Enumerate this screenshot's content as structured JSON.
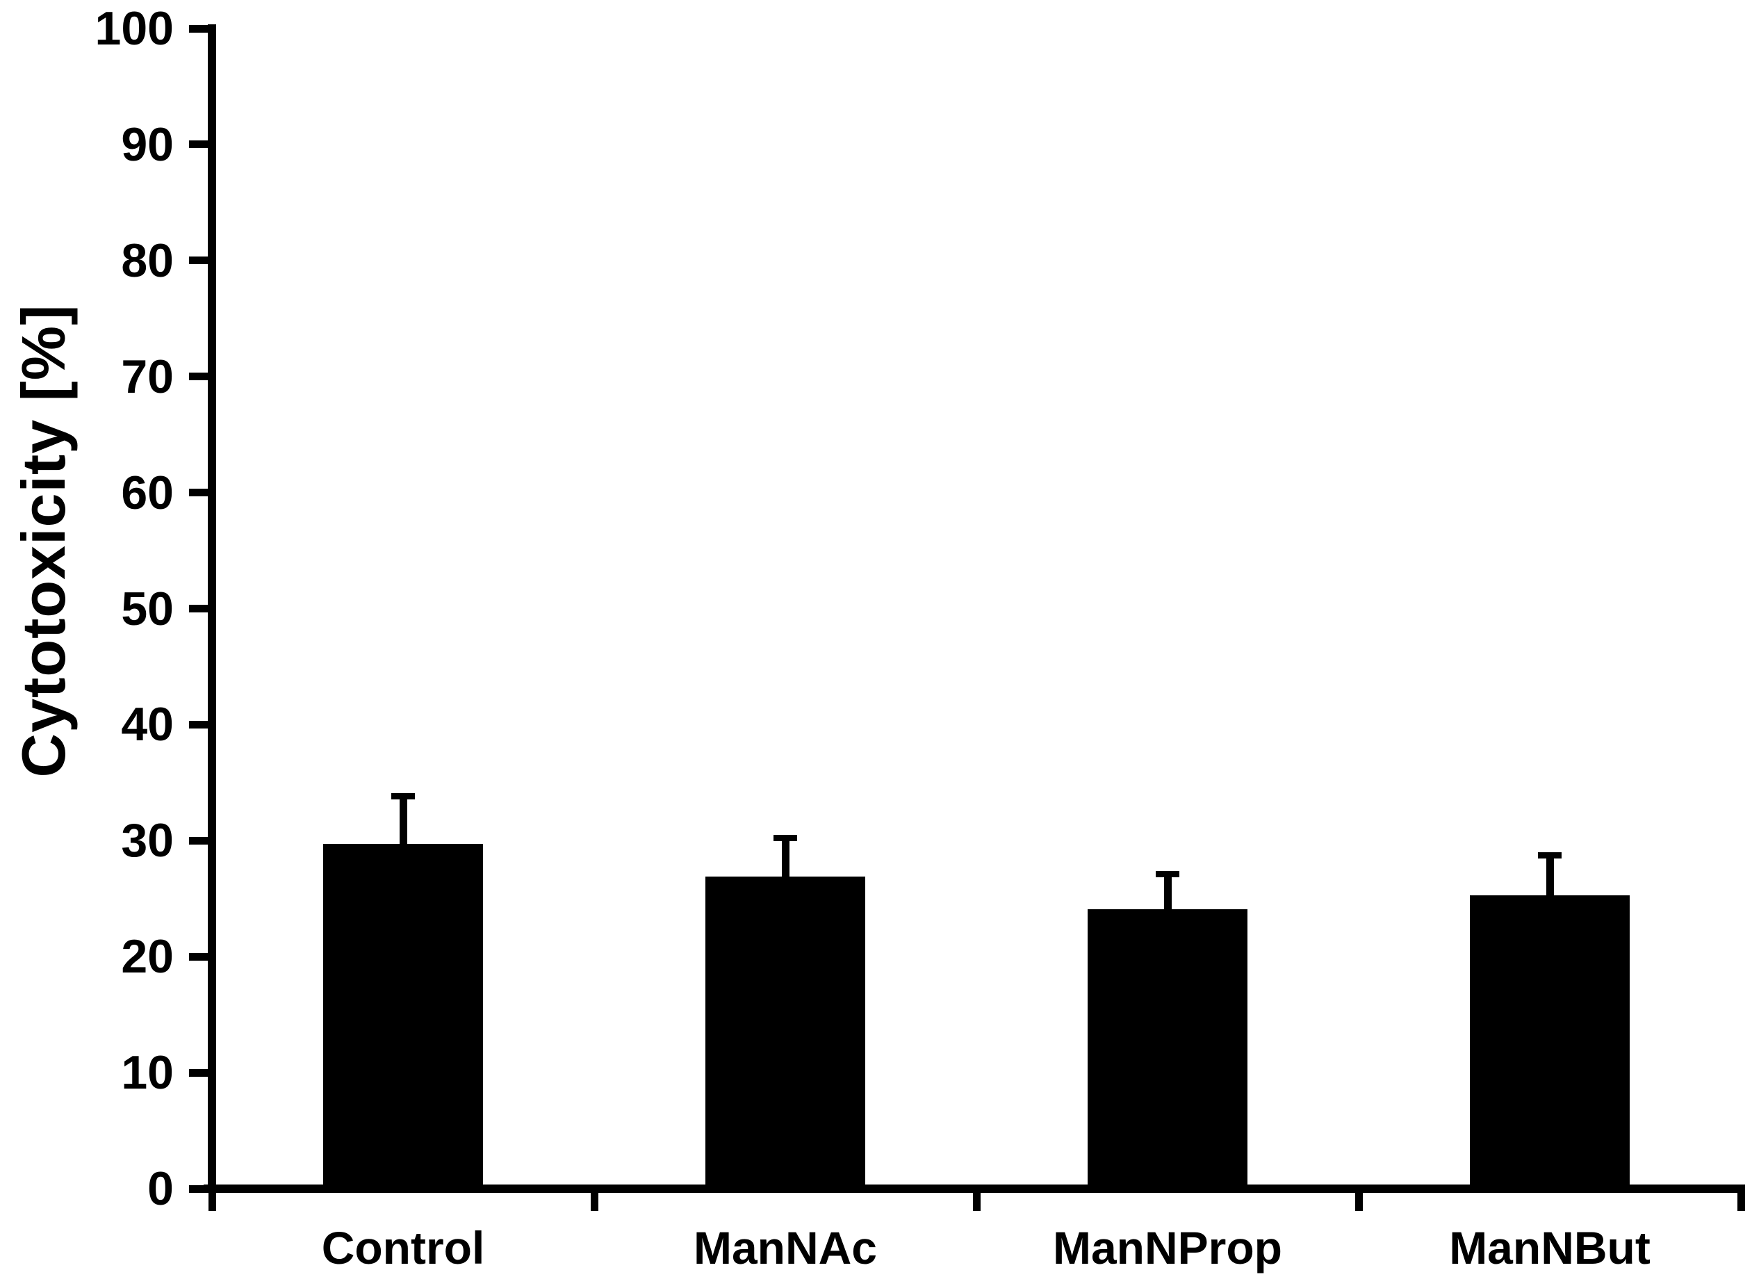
{
  "chart_data": {
    "type": "bar",
    "title": "",
    "ylabel": "Cytotoxicity [%]",
    "xlabel": "",
    "categories": [
      "Control",
      "ManNAc",
      "ManNProp",
      "ManNBut"
    ],
    "values": [
      29.7,
      26.9,
      24.1,
      25.3
    ],
    "errors": [
      4.4,
      3.6,
      3.3,
      3.7
    ],
    "ylim": [
      0,
      100
    ],
    "yticks": [
      0,
      10,
      20,
      30,
      40,
      50,
      60,
      70,
      80,
      90,
      100
    ],
    "grid": false,
    "legend": false,
    "error_bars": "upper only",
    "bar_color": "#000000",
    "axis_color": "#000000",
    "background_color": "#ffffff"
  }
}
